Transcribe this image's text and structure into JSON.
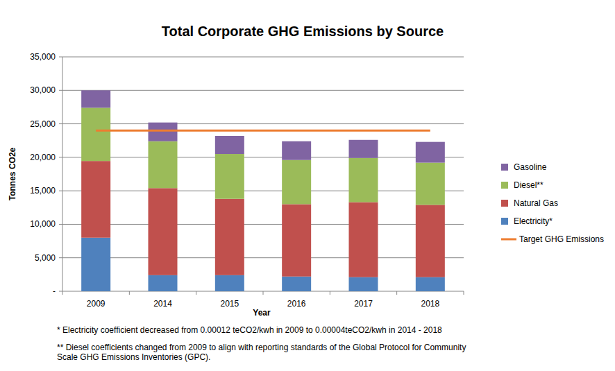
{
  "chart_data": {
    "type": "bar",
    "title": "Total Corporate GHG Emissions by Source",
    "x_label": "Year",
    "y_label": "Tonnes CO2e",
    "categories": [
      "2009",
      "2014",
      "2015",
      "2016",
      "2017",
      "2018"
    ],
    "stacked": true,
    "grid": true,
    "legend": "right",
    "ylim": [
      0,
      35000
    ],
    "yticks": [
      {
        "value": 0,
        "label": "-"
      },
      {
        "value": 5000,
        "label": "5,000"
      },
      {
        "value": 10000,
        "label": "10,000"
      },
      {
        "value": 15000,
        "label": "15,000"
      },
      {
        "value": 20000,
        "label": "20,000"
      },
      {
        "value": 25000,
        "label": "25,000"
      },
      {
        "value": 30000,
        "label": "30,000"
      },
      {
        "value": 35000,
        "label": "35,000"
      }
    ],
    "series": [
      {
        "name": "Electricity*",
        "color": "#4f81bd",
        "values": [
          8000,
          2400,
          2400,
          2200,
          2100,
          2100
        ]
      },
      {
        "name": "Natural Gas",
        "color": "#c0504d",
        "values": [
          11450,
          13000,
          11400,
          10800,
          11200,
          10800
        ]
      },
      {
        "name": "Diesel**",
        "color": "#9bbb59",
        "values": [
          7950,
          7000,
          6700,
          6600,
          6600,
          6300
        ]
      },
      {
        "name": "Gasoline",
        "color": "#8064a2",
        "values": [
          2600,
          2800,
          2700,
          2800,
          2700,
          3100
        ]
      },
      {
        "name": "Target GHG Emissions",
        "color": "#ed7d31",
        "type": "line",
        "values": [
          24000,
          24000,
          24000,
          24000,
          24000,
          24000
        ]
      }
    ],
    "annotations": [
      "* Electricity coefficient decreased from 0.00012 teCO2/kwh in 2009 to 0.00004teCO2/kwh in 2014 - 2018",
      "** Diesel coefficients changed from 2009 to align with reporting standards of the Global Protocol for Community",
      "Scale GHG Emissions Inventories (GPC)."
    ]
  }
}
